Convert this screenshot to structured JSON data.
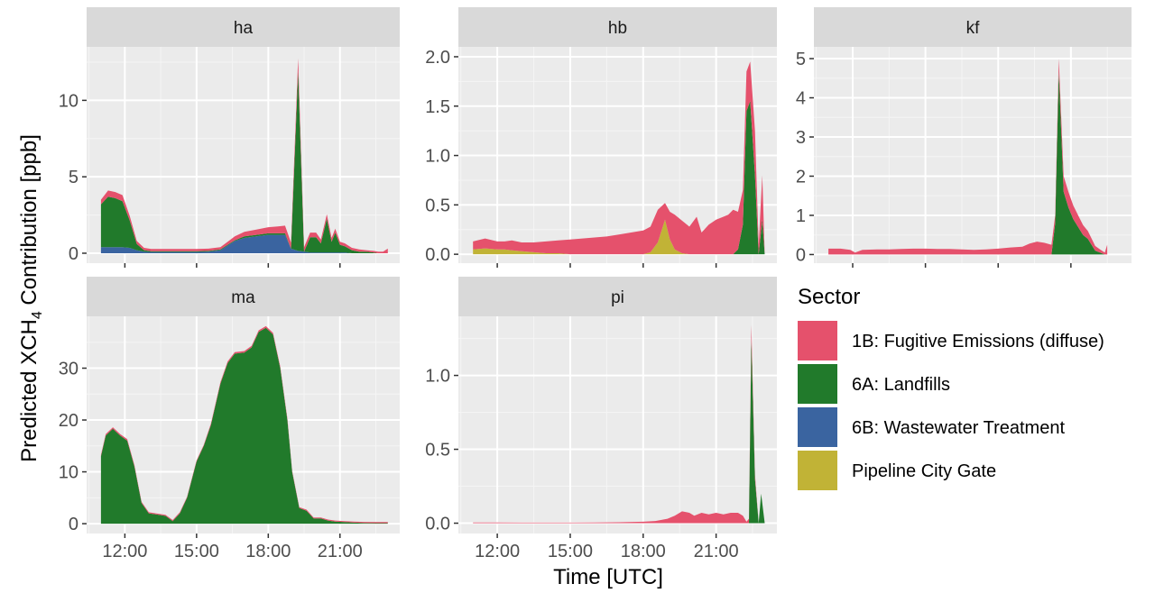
{
  "chart_data": {
    "type": "area",
    "title": "",
    "xlabel": "Time [UTC]",
    "ylabel": "Predicted XCH4 Contribution [ppb]",
    "ylabel_parts": {
      "before": "Predicted XCH",
      "sub": "4",
      "after": " Contribution [ppb]"
    },
    "stacking": "stacked",
    "grid": true,
    "legend": {
      "title": "Sector",
      "placement": "right"
    },
    "series": [
      {
        "key": "fug",
        "name": "1B: Fugitive Emissions (diffuse)",
        "color": "#E5516C"
      },
      {
        "key": "lf",
        "name": "6A: Landfills",
        "color": "#217A2B"
      },
      {
        "key": "ww",
        "name": "6B: Wastewater Treatment",
        "color": "#3A64A0"
      },
      {
        "key": "pcg",
        "name": "Pipeline City Gate",
        "color": "#C1B336"
      }
    ],
    "x_unit": "hours UTC",
    "x_ticks": [
      "12:00",
      "15:00",
      "18:00",
      "21:00"
    ],
    "x_tick_values": [
      12,
      15,
      18,
      21
    ],
    "panels": [
      {
        "id": "ha",
        "label": "ha",
        "xlim": [
          10.4,
          23.5
        ],
        "ylim": [
          -0.65,
          13.5
        ],
        "yticks": [
          0,
          5,
          10
        ],
        "ytick_labels": [
          "0",
          "5",
          "10"
        ],
        "show_x_tick_labels": false,
        "x": [
          11.0,
          11.3,
          11.6,
          11.9,
          12.2,
          12.5,
          12.8,
          13.1,
          13.5,
          14.0,
          14.5,
          15.0,
          15.5,
          16.0,
          16.3,
          16.6,
          17.0,
          17.5,
          18.0,
          18.4,
          18.7,
          18.95,
          19.25,
          19.5,
          19.75,
          20.0,
          20.2,
          20.45,
          20.65,
          20.8,
          21.0,
          21.2,
          21.5,
          21.8,
          22.1,
          22.4,
          22.6,
          22.8,
          23.0
        ],
        "stack": {
          "ww": [
            0.4,
            0.4,
            0.4,
            0.4,
            0.35,
            0.2,
            0.1,
            0.08,
            0.08,
            0.08,
            0.08,
            0.08,
            0.1,
            0.2,
            0.5,
            0.8,
            1.0,
            1.1,
            1.2,
            1.2,
            1.2,
            0.3,
            0.15,
            0.1,
            0.05,
            0.05,
            0.05,
            0.05,
            0.05,
            0.05,
            0.05,
            0.05,
            0.0,
            0.0,
            0.0,
            0.0,
            0.0,
            0.0,
            0.0
          ],
          "lf": [
            2.8,
            3.3,
            3.2,
            3.0,
            1.8,
            0.4,
            0.1,
            0.05,
            0.05,
            0.05,
            0.05,
            0.05,
            0.05,
            0.05,
            0.05,
            0.05,
            0.1,
            0.1,
            0.1,
            0.1,
            0.1,
            0.0,
            11.8,
            0.0,
            1.0,
            1.0,
            0.6,
            2.2,
            0.7,
            1.3,
            0.5,
            0.4,
            0.2,
            0.1,
            0.1,
            0.05,
            0.0,
            0.0,
            0.0
          ],
          "fug": [
            0.3,
            0.4,
            0.4,
            0.4,
            0.3,
            0.2,
            0.15,
            0.15,
            0.15,
            0.15,
            0.15,
            0.15,
            0.15,
            0.15,
            0.2,
            0.25,
            0.3,
            0.35,
            0.4,
            0.45,
            0.5,
            0.4,
            0.8,
            0.3,
            0.3,
            0.3,
            0.25,
            0.3,
            0.25,
            0.25,
            0.2,
            0.2,
            0.15,
            0.15,
            0.1,
            0.1,
            0.1,
            0.1,
            0.3
          ],
          "pcg": []
        }
      },
      {
        "id": "hb",
        "label": "hb",
        "xlim": [
          10.4,
          23.5
        ],
        "ylim": [
          -0.09,
          2.1
        ],
        "yticks": [
          0.0,
          0.5,
          1.0,
          1.5,
          2.0
        ],
        "ytick_labels": [
          "0.0",
          "0.5",
          "1.0",
          "1.5",
          "2.0"
        ],
        "show_x_tick_labels": false,
        "x": [
          11.0,
          11.5,
          12.0,
          12.3,
          12.6,
          13.0,
          13.5,
          14.0,
          14.5,
          15.0,
          15.5,
          16.0,
          16.5,
          17.0,
          17.5,
          18.0,
          18.3,
          18.6,
          18.9,
          19.1,
          19.3,
          19.6,
          19.9,
          20.2,
          20.4,
          20.7,
          21.0,
          21.3,
          21.5,
          21.7,
          21.9,
          22.1,
          22.25,
          22.4,
          22.6,
          22.75,
          22.9,
          23.0
        ],
        "stack": {
          "ww": [],
          "pcg": [
            0.05,
            0.06,
            0.05,
            0.05,
            0.04,
            0.03,
            0.02,
            0.01,
            0.01,
            0.0,
            0.0,
            0.0,
            0.0,
            0.0,
            0.0,
            0.0,
            0.02,
            0.12,
            0.35,
            0.15,
            0.05,
            0.01,
            0.0,
            0.0,
            0.0,
            0.0,
            0.0,
            0.0,
            0.0,
            0.0,
            0.0,
            0.0,
            0.0,
            0.0,
            0.0,
            0.0,
            0.0,
            0.0
          ],
          "lf": [
            0.0,
            0.0,
            0.0,
            0.0,
            0.0,
            0.0,
            0.0,
            0.0,
            0.0,
            0.0,
            0.0,
            0.0,
            0.0,
            0.0,
            0.0,
            0.0,
            0.0,
            0.0,
            0.0,
            0.0,
            0.0,
            0.0,
            0.0,
            0.0,
            0.0,
            0.0,
            0.0,
            0.0,
            0.0,
            0.0,
            0.05,
            0.3,
            1.45,
            1.55,
            0.8,
            0.0,
            0.35,
            0.0
          ],
          "fug": [
            0.08,
            0.1,
            0.08,
            0.08,
            0.1,
            0.09,
            0.1,
            0.12,
            0.13,
            0.15,
            0.16,
            0.17,
            0.18,
            0.2,
            0.22,
            0.24,
            0.26,
            0.33,
            0.17,
            0.28,
            0.35,
            0.33,
            0.28,
            0.38,
            0.22,
            0.3,
            0.35,
            0.38,
            0.4,
            0.45,
            0.38,
            0.35,
            0.4,
            0.4,
            0.45,
            0.1,
            0.45,
            0.0
          ]
        }
      },
      {
        "id": "kf",
        "label": "kf",
        "xlim": [
          10.4,
          23.5
        ],
        "ylim": [
          -0.22,
          5.3
        ],
        "yticks": [
          0,
          1,
          2,
          3,
          4,
          5
        ],
        "ytick_labels": [
          "0",
          "1",
          "2",
          "3",
          "4",
          "5"
        ],
        "show_x_tick_labels": false,
        "x": [
          11.0,
          11.5,
          11.9,
          12.1,
          12.4,
          13.0,
          13.5,
          14.0,
          14.5,
          15.0,
          15.5,
          16.0,
          16.5,
          17.0,
          17.5,
          18.0,
          18.5,
          19.0,
          19.3,
          19.6,
          19.9,
          20.2,
          20.35,
          20.5,
          20.7,
          20.9,
          21.1,
          21.3,
          21.5,
          21.7,
          21.9,
          22.0,
          22.2,
          22.4,
          22.5
        ],
        "stack": {
          "ww": [],
          "pcg": [],
          "lf": [
            0.0,
            0.0,
            0.0,
            0.0,
            0.0,
            0.0,
            0.0,
            0.0,
            0.0,
            0.0,
            0.0,
            0.0,
            0.0,
            0.0,
            0.0,
            0.0,
            0.0,
            0.0,
            0.0,
            0.0,
            0.0,
            0.0,
            0.8,
            4.7,
            1.6,
            1.2,
            0.9,
            0.7,
            0.5,
            0.4,
            0.2,
            0.1,
            0.05,
            0.0,
            0.0
          ],
          "fug": [
            0.15,
            0.15,
            0.12,
            0.05,
            0.12,
            0.13,
            0.13,
            0.14,
            0.15,
            0.15,
            0.14,
            0.14,
            0.13,
            0.12,
            0.13,
            0.15,
            0.18,
            0.2,
            0.28,
            0.33,
            0.3,
            0.25,
            0.2,
            0.3,
            0.4,
            0.4,
            0.35,
            0.3,
            0.25,
            0.2,
            0.15,
            0.12,
            0.08,
            0.05,
            0.25
          ]
        }
      },
      {
        "id": "ma",
        "label": "ma",
        "xlim": [
          10.4,
          23.5
        ],
        "ylim": [
          -1.9,
          40
        ],
        "yticks": [
          0,
          10,
          20,
          30
        ],
        "ytick_labels": [
          "0",
          "10",
          "20",
          "30"
        ],
        "show_x_tick_labels": true,
        "x": [
          11.0,
          11.2,
          11.5,
          11.8,
          12.1,
          12.4,
          12.7,
          13.0,
          13.3,
          13.7,
          14.0,
          14.3,
          14.6,
          15.0,
          15.3,
          15.6,
          16.0,
          16.3,
          16.6,
          17.0,
          17.3,
          17.6,
          17.9,
          18.2,
          18.5,
          18.8,
          19.0,
          19.3,
          19.6,
          19.9,
          20.2,
          20.5,
          20.8,
          21.2,
          21.6,
          22.0,
          22.5,
          23.0
        ],
        "stack": {
          "ww": [],
          "pcg": [],
          "lf": [
            13.0,
            17.0,
            18.3,
            17.0,
            16.0,
            11.0,
            4.0,
            2.0,
            1.8,
            1.5,
            0.5,
            2.0,
            5.0,
            12.0,
            15.0,
            19.0,
            27.0,
            31.0,
            32.8,
            33.0,
            34.0,
            37.0,
            37.8,
            36.5,
            30.0,
            20.0,
            10.0,
            3.0,
            2.5,
            1.0,
            1.0,
            0.6,
            0.4,
            0.3,
            0.2,
            0.15,
            0.1,
            0.1
          ],
          "fug": [
            0.3,
            0.3,
            0.3,
            0.3,
            0.3,
            0.3,
            0.2,
            0.2,
            0.2,
            0.2,
            0.2,
            0.2,
            0.2,
            0.2,
            0.2,
            0.3,
            0.3,
            0.3,
            0.3,
            0.3,
            0.3,
            0.3,
            0.3,
            0.3,
            0.3,
            0.3,
            0.2,
            0.2,
            0.2,
            0.2,
            0.2,
            0.2,
            0.2,
            0.2,
            0.2,
            0.2,
            0.2,
            0.2
          ]
        }
      },
      {
        "id": "pi",
        "label": "pi",
        "xlim": [
          10.4,
          23.5
        ],
        "ylim": [
          -0.07,
          1.4
        ],
        "yticks": [
          0.0,
          0.5,
          1.0
        ],
        "ytick_labels": [
          "0.0",
          "0.5",
          "1.0"
        ],
        "show_x_tick_labels": true,
        "x": [
          11.0,
          12.0,
          13.0,
          14.0,
          15.0,
          16.0,
          17.0,
          18.0,
          18.5,
          19.0,
          19.3,
          19.6,
          19.9,
          20.1,
          20.4,
          20.7,
          21.0,
          21.3,
          21.6,
          21.9,
          22.1,
          22.25,
          22.35,
          22.45,
          22.6,
          22.75,
          22.85,
          23.0
        ],
        "stack": {
          "ww": [],
          "pcg": [],
          "lf": [
            0.0,
            0.0,
            0.0,
            0.0,
            0.0,
            0.0,
            0.0,
            0.0,
            0.0,
            0.0,
            0.0,
            0.0,
            0.0,
            0.0,
            0.0,
            0.0,
            0.0,
            0.0,
            0.0,
            0.0,
            0.0,
            0.0,
            0.0,
            1.25,
            0.3,
            0.0,
            0.2,
            0.0
          ],
          "fug": [
            0.005,
            0.005,
            0.004,
            0.004,
            0.004,
            0.005,
            0.006,
            0.01,
            0.015,
            0.03,
            0.05,
            0.08,
            0.07,
            0.05,
            0.07,
            0.06,
            0.07,
            0.06,
            0.07,
            0.07,
            0.05,
            0.01,
            0.03,
            0.09,
            0.03,
            0.0,
            0.0,
            0.0
          ]
        }
      }
    ]
  }
}
